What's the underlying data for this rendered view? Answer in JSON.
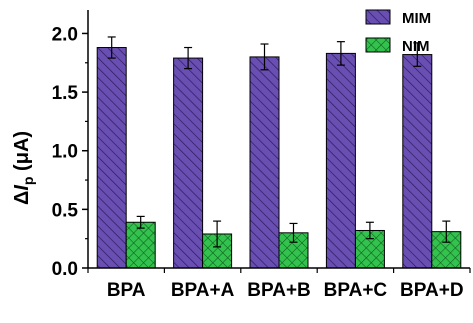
{
  "chart_data": {
    "type": "bar",
    "categories": [
      "BPA",
      "BPA+A",
      "BPA+B",
      "BPA+C",
      "BPA+D"
    ],
    "series": [
      {
        "name": "MIM",
        "values": [
          1.88,
          1.79,
          1.8,
          1.83,
          1.82
        ],
        "errors": [
          0.09,
          0.09,
          0.11,
          0.1,
          0.1
        ],
        "color": "#6a4fb3",
        "pattern": "diagonal-hatch"
      },
      {
        "name": "NIM",
        "values": [
          0.39,
          0.29,
          0.3,
          0.32,
          0.31
        ],
        "errors": [
          0.05,
          0.11,
          0.08,
          0.07,
          0.09
        ],
        "color": "#33c24d",
        "pattern": "cross-hatch"
      }
    ],
    "ylabel": {
      "delta": "Δ",
      "var": "I",
      "sub": "p",
      "unit": " (μA)"
    },
    "yticks": [
      "0.0",
      "0.5",
      "1.0",
      "1.5",
      "2.0"
    ],
    "ylim": [
      0,
      2.2
    ],
    "grid": false,
    "legend_position": "top-right"
  }
}
